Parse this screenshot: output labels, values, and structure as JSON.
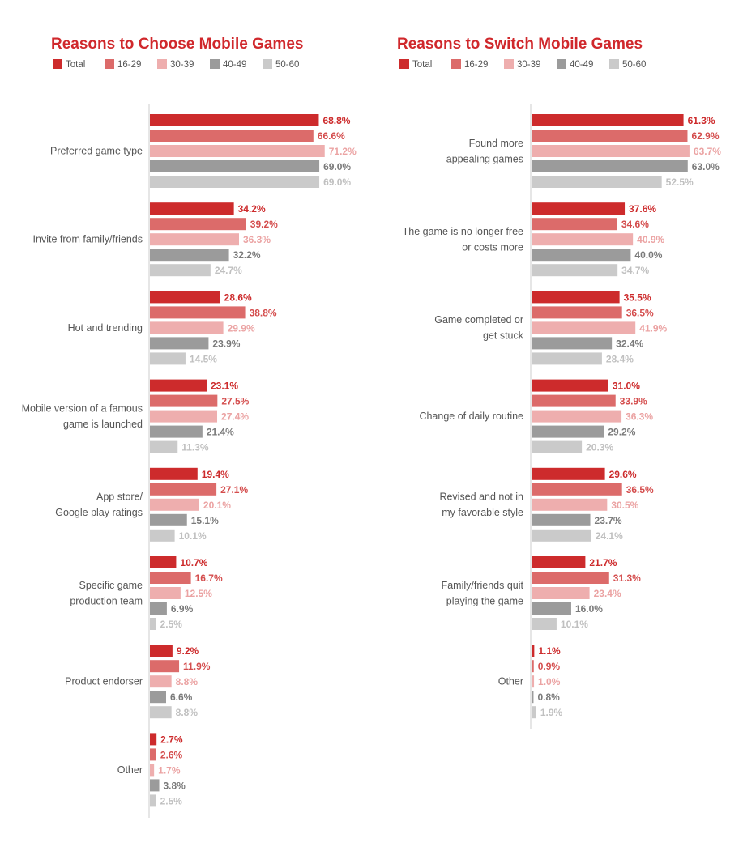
{
  "colors": {
    "title": "#d0282c",
    "series": [
      "#cd2b2c",
      "#dc6b6a",
      "#eeaeae",
      "#9b9b9b",
      "#cacaca"
    ],
    "labels": [
      "#cd2b2c",
      "#d44d4d",
      "#eba3a3",
      "#7a7a7a",
      "#c0c0c0"
    ],
    "axis": "#cccccc"
  },
  "chart_data": [
    {
      "type": "bar",
      "orientation": "horizontal",
      "title": "Reasons to Choose Mobile Games",
      "legend": [
        "Total",
        "16-29",
        "30-39",
        "40-49",
        "50-60"
      ],
      "categories": [
        [
          "Preferred game type"
        ],
        [
          "Invite from family/friends"
        ],
        [
          "Hot and trending"
        ],
        [
          "Mobile version of a famous",
          "game is launched"
        ],
        [
          "App store/",
          "Google play ratings"
        ],
        [
          "Specific game",
          "production team"
        ],
        [
          "Product endorser"
        ],
        [
          "Other"
        ]
      ],
      "series": [
        {
          "name": "Total",
          "values": [
            68.8,
            34.2,
            28.6,
            23.1,
            19.4,
            10.7,
            9.2,
            2.7
          ]
        },
        {
          "name": "16-29",
          "values": [
            66.6,
            39.2,
            38.8,
            27.5,
            27.1,
            16.7,
            11.9,
            2.6
          ]
        },
        {
          "name": "30-39",
          "values": [
            71.2,
            36.3,
            29.9,
            27.4,
            20.1,
            12.5,
            8.8,
            1.7
          ]
        },
        {
          "name": "40-49",
          "values": [
            69.0,
            32.2,
            23.9,
            21.4,
            15.1,
            6.9,
            6.6,
            3.8
          ]
        },
        {
          "name": "50-60",
          "values": [
            69.0,
            24.7,
            14.5,
            11.3,
            10.1,
            2.5,
            8.8,
            2.5
          ]
        }
      ],
      "unit": "%",
      "xlim": [
        0,
        80
      ]
    },
    {
      "type": "bar",
      "orientation": "horizontal",
      "title": "Reasons to Switch Mobile Games",
      "legend": [
        "Total",
        "16-29",
        "30-39",
        "40-49",
        "50-60"
      ],
      "categories": [
        [
          "Found more",
          "appealing games"
        ],
        [
          "The game is no longer free",
          "or costs more"
        ],
        [
          "Game completed or",
          "get stuck"
        ],
        [
          "Change of daily routine"
        ],
        [
          "Revised and not in",
          "my favorable style"
        ],
        [
          "Family/friends quit",
          "playing the game"
        ],
        [
          "Other"
        ]
      ],
      "series": [
        {
          "name": "Total",
          "values": [
            61.3,
            37.6,
            35.5,
            31.0,
            29.6,
            21.7,
            1.1
          ]
        },
        {
          "name": "16-29",
          "values": [
            62.9,
            34.6,
            36.5,
            33.9,
            36.5,
            31.3,
            0.9
          ]
        },
        {
          "name": "30-39",
          "values": [
            63.7,
            40.9,
            41.9,
            36.3,
            30.5,
            23.4,
            1.0
          ]
        },
        {
          "name": "40-49",
          "values": [
            63.0,
            40.0,
            32.4,
            29.2,
            23.7,
            16.0,
            0.8
          ]
        },
        {
          "name": "50-60",
          "values": [
            52.5,
            34.7,
            28.4,
            20.3,
            24.1,
            10.1,
            1.9
          ]
        }
      ],
      "unit": "%",
      "xlim": [
        0,
        70
      ]
    }
  ]
}
